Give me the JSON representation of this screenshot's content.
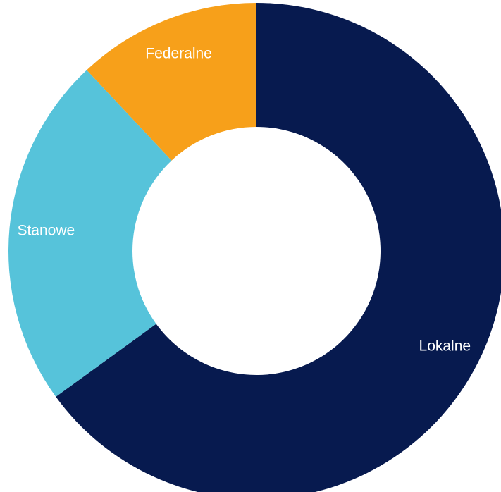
{
  "chart_data": {
    "type": "pie",
    "variant": "donut",
    "title": "",
    "legend": "none",
    "slices": [
      {
        "label": "Lokalne",
        "value": 65,
        "color": "#071a4f"
      },
      {
        "label": "Stanowe",
        "value": 23,
        "color": "#56c3da"
      },
      {
        "label": "Federalne",
        "value": 12,
        "color": "#f7a01a"
      }
    ],
    "start": "top",
    "direction": "clockwise",
    "background": "#ffffff"
  }
}
